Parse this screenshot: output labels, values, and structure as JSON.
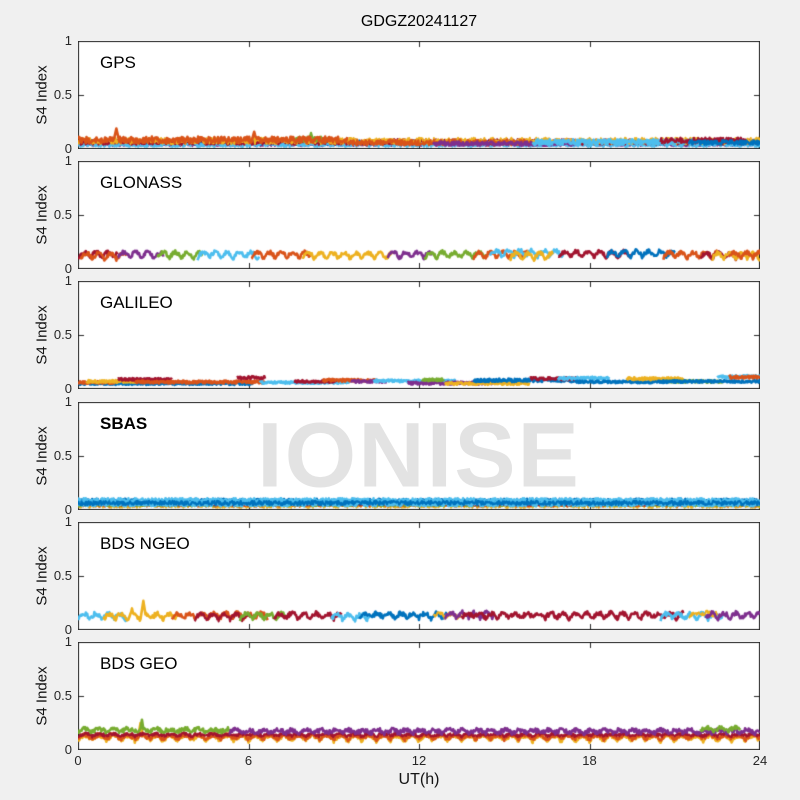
{
  "title": "GDGZ20241127",
  "watermark": "IONISE",
  "axis": {
    "ylabel": "S4 Index",
    "xlabel": "UT(h)",
    "yticks": [
      "1",
      "0.5",
      "0"
    ],
    "xticks": [
      "0",
      "6",
      "12",
      "18",
      "24"
    ]
  },
  "chart_data": {
    "type": "line",
    "title": "GDGZ20241127",
    "xlabel": "UT(h)",
    "ylabel": "S4 Index",
    "xlim": [
      0,
      24
    ],
    "ylim": [
      0,
      1
    ],
    "xticks": [
      0,
      6,
      12,
      18,
      24
    ],
    "yticks": [
      0,
      0.5,
      1
    ],
    "watermark": "IONISE",
    "description": "Amplitude scintillation index S4 versus universal time for six GNSS constellations on 2024-11-27 at station GDGZ; each colored trace is one satellite, quiet-day values mostly between 0.03 and 0.2",
    "palette": {
      "blue": "#0072BD",
      "orange": "#D95319",
      "yellow": "#EDB120",
      "purple": "#7E2F8E",
      "green": "#77AC30",
      "lightblue": "#4DBEEE",
      "darkred": "#A2142F"
    },
    "panels": [
      {
        "label": "GPS",
        "label_weight": "normal",
        "series": [
          {
            "c": "purple",
            "t0": 0,
            "t1": 24,
            "b": 0.045,
            "n": 0.018,
            "w": 2.2
          },
          {
            "c": "blue",
            "t0": 0,
            "t1": 24,
            "b": 0.06,
            "n": 0.022,
            "w": 2.4
          },
          {
            "c": "lightblue",
            "t0": 0,
            "t1": 24,
            "b": 0.04,
            "n": 0.018,
            "w": 2.4
          },
          {
            "c": "darkred",
            "t0": 0,
            "t1": 24,
            "b": 0.065,
            "n": 0.025,
            "w": 2.4
          },
          {
            "c": "yellow",
            "t0": 0,
            "t1": 24,
            "b": 0.075,
            "n": 0.03,
            "w": 2.0
          },
          {
            "c": "green",
            "t0": 7.6,
            "t1": 8.8,
            "b": 0.09,
            "n": 0.025,
            "w": 2.2,
            "spikes": [
              {
                "t": 8.2,
                "v": 0.15
              }
            ]
          },
          {
            "c": "orange",
            "t0": 0,
            "t1": 9.5,
            "b": 0.085,
            "n": 0.03,
            "w": 2.6,
            "spikes": [
              {
                "t": 1.35,
                "v": 0.19
              },
              {
                "t": 6.2,
                "v": 0.16
              }
            ]
          },
          {
            "c": "orange",
            "t0": 9.5,
            "t1": 16,
            "b": 0.06,
            "n": 0.028,
            "w": 2.2
          },
          {
            "c": "purple",
            "t0": 12.5,
            "t1": 17.5,
            "b": 0.05,
            "n": 0.02,
            "w": 2.6
          },
          {
            "c": "lightblue",
            "t0": 16,
            "t1": 22.5,
            "b": 0.065,
            "n": 0.025,
            "w": 2.8
          },
          {
            "c": "darkred",
            "t0": 20.5,
            "t1": 23.5,
            "b": 0.08,
            "n": 0.025,
            "w": 2.4
          },
          {
            "c": "blue",
            "t0": 21.5,
            "t1": 24,
            "b": 0.06,
            "n": 0.02,
            "w": 2.6
          }
        ]
      },
      {
        "label": "GLONASS",
        "label_weight": "normal",
        "series": [
          {
            "c": "darkred",
            "t0": 0,
            "t1": 1.4,
            "b": 0.1,
            "s": 0.055,
            "p": 0.42,
            "n": 0.018
          },
          {
            "c": "orange",
            "t0": 0.1,
            "t1": 1.7,
            "b": 0.09,
            "s": 0.055,
            "p": 0.42,
            "n": 0.018
          },
          {
            "c": "purple",
            "t0": 1.4,
            "t1": 3.0,
            "b": 0.1,
            "s": 0.055,
            "p": 0.42,
            "n": 0.018
          },
          {
            "c": "green",
            "t0": 2.8,
            "t1": 4.4,
            "b": 0.1,
            "s": 0.055,
            "p": 0.42,
            "n": 0.018
          },
          {
            "c": "lightblue",
            "t0": 4.2,
            "t1": 6.4,
            "b": 0.1,
            "s": 0.055,
            "p": 0.42,
            "n": 0.018
          },
          {
            "c": "orange",
            "t0": 6.1,
            "t1": 8.2,
            "b": 0.1,
            "s": 0.055,
            "p": 0.42,
            "n": 0.018
          },
          {
            "c": "yellow",
            "t0": 7.9,
            "t1": 11.1,
            "b": 0.095,
            "s": 0.055,
            "p": 0.42,
            "n": 0.018
          },
          {
            "c": "purple",
            "t0": 10.9,
            "t1": 12.5,
            "b": 0.1,
            "s": 0.055,
            "p": 0.42,
            "n": 0.018
          },
          {
            "c": "green",
            "t0": 12.2,
            "t1": 14.4,
            "b": 0.1,
            "s": 0.055,
            "p": 0.42,
            "n": 0.018
          },
          {
            "c": "orange",
            "t0": 13.9,
            "t1": 15.9,
            "b": 0.1,
            "s": 0.055,
            "p": 0.42,
            "n": 0.018
          },
          {
            "c": "lightblue",
            "t0": 14.5,
            "t1": 17.1,
            "b": 0.115,
            "s": 0.055,
            "p": 0.42,
            "n": 0.018
          },
          {
            "c": "yellow",
            "t0": 15.2,
            "t1": 16.7,
            "b": 0.09,
            "s": 0.055,
            "p": 0.42,
            "n": 0.018
          },
          {
            "c": "darkred",
            "t0": 16.9,
            "t1": 19.5,
            "b": 0.105,
            "s": 0.055,
            "p": 0.42,
            "n": 0.018
          },
          {
            "c": "blue",
            "t0": 18.6,
            "t1": 21.0,
            "b": 0.11,
            "s": 0.055,
            "p": 0.42,
            "n": 0.018
          },
          {
            "c": "orange",
            "t0": 20.6,
            "t1": 22.5,
            "b": 0.1,
            "s": 0.055,
            "p": 0.42,
            "n": 0.018
          },
          {
            "c": "darkred",
            "t0": 21.9,
            "t1": 23.3,
            "b": 0.095,
            "s": 0.055,
            "p": 0.42,
            "n": 0.018
          },
          {
            "c": "yellow",
            "t0": 22.3,
            "t1": 24,
            "b": 0.09,
            "s": 0.055,
            "p": 0.42,
            "n": 0.018
          },
          {
            "c": "orange",
            "t0": 22.9,
            "t1": 24,
            "b": 0.1,
            "s": 0.055,
            "p": 0.42,
            "n": 0.018
          }
        ]
      },
      {
        "label": "GALILEO",
        "label_weight": "normal",
        "series": [
          {
            "c": "blue",
            "t0": 0,
            "t1": 6.2,
            "b": 0.05,
            "n": 0.01,
            "w": 3
          },
          {
            "c": "orange",
            "t0": 0,
            "t1": 1.3,
            "b": 0.06,
            "n": 0.01,
            "w": 3
          },
          {
            "c": "yellow",
            "t0": 0.3,
            "t1": 2.1,
            "b": 0.07,
            "n": 0.01,
            "w": 3
          },
          {
            "c": "darkred",
            "t0": 1.4,
            "t1": 3.3,
            "b": 0.09,
            "n": 0.01,
            "w": 3
          },
          {
            "c": "orange",
            "t0": 2.0,
            "t1": 6.6,
            "b": 0.065,
            "n": 0.012,
            "w": 3
          },
          {
            "c": "darkred",
            "t0": 5.6,
            "t1": 6.6,
            "b": 0.105,
            "n": 0.012,
            "w": 3
          },
          {
            "c": "lightblue",
            "t0": 6.4,
            "t1": 9.6,
            "b": 0.06,
            "n": 0.01,
            "w": 3
          },
          {
            "c": "darkred",
            "t0": 7.6,
            "t1": 9.1,
            "b": 0.07,
            "n": 0.01,
            "w": 3
          },
          {
            "c": "orange",
            "t0": 8.6,
            "t1": 10.6,
            "b": 0.08,
            "n": 0.012,
            "w": 3
          },
          {
            "c": "purple",
            "t0": 9.6,
            "t1": 10.9,
            "b": 0.07,
            "n": 0.01,
            "w": 3
          },
          {
            "c": "lightblue",
            "t0": 10.4,
            "t1": 13.3,
            "b": 0.075,
            "n": 0.01,
            "w": 3
          },
          {
            "c": "purple",
            "t0": 11.6,
            "t1": 14.7,
            "b": 0.055,
            "n": 0.012,
            "w": 3
          },
          {
            "c": "green",
            "t0": 12.1,
            "t1": 12.9,
            "b": 0.085,
            "n": 0.01,
            "w": 3
          },
          {
            "c": "yellow",
            "t0": 12.9,
            "t1": 15.9,
            "b": 0.05,
            "n": 0.01,
            "w": 3
          },
          {
            "c": "blue",
            "t0": 13.9,
            "t1": 17.7,
            "b": 0.08,
            "n": 0.014,
            "w": 3
          },
          {
            "c": "darkred",
            "t0": 15.9,
            "t1": 17.7,
            "b": 0.095,
            "n": 0.012,
            "w": 3
          },
          {
            "c": "lightblue",
            "t0": 16.9,
            "t1": 18.7,
            "b": 0.1,
            "n": 0.012,
            "w": 3
          },
          {
            "c": "blue",
            "t0": 17.5,
            "t1": 20.8,
            "b": 0.065,
            "n": 0.01,
            "w": 3
          },
          {
            "c": "yellow",
            "t0": 19.3,
            "t1": 21.3,
            "b": 0.095,
            "n": 0.012,
            "w": 3
          },
          {
            "c": "green",
            "t0": 20.7,
            "t1": 22.7,
            "b": 0.07,
            "n": 0.01,
            "w": 3
          },
          {
            "c": "blue",
            "t0": 20.4,
            "t1": 24,
            "b": 0.07,
            "n": 0.01,
            "w": 3
          },
          {
            "c": "lightblue",
            "t0": 22.5,
            "t1": 24,
            "b": 0.115,
            "n": 0.012,
            "w": 3
          },
          {
            "c": "orange",
            "t0": 22.9,
            "t1": 24,
            "b": 0.11,
            "n": 0.012,
            "w": 3
          }
        ]
      },
      {
        "label": "SBAS",
        "label_weight": "bold",
        "series": [
          {
            "c": "yellow",
            "t0": 0,
            "t1": 24,
            "b": 0.04,
            "n": 0.02,
            "w": 2.0
          },
          {
            "c": "orange",
            "t0": 0,
            "t1": 24,
            "b": 0.05,
            "n": 0.02,
            "w": 2.0
          },
          {
            "c": "green",
            "t0": 0,
            "t1": 24,
            "b": 0.05,
            "n": 0.016,
            "w": 2.0
          },
          {
            "c": "purple",
            "t0": 0,
            "t1": 24,
            "b": 0.065,
            "n": 0.02,
            "w": 2.0
          },
          {
            "c": "darkred",
            "t0": 0,
            "t1": 24,
            "b": 0.06,
            "n": 0.02,
            "w": 2.0
          },
          {
            "c": "blue",
            "t0": 0,
            "t1": 24,
            "b": 0.08,
            "n": 0.024,
            "w": 2.6
          },
          {
            "c": "lightblue",
            "t0": 0,
            "t1": 24,
            "b": 0.055,
            "n": 0.02,
            "w": 2.6
          },
          {
            "c": "lightblue",
            "t0": 0,
            "t1": 24,
            "b": 0.09,
            "n": 0.02,
            "w": 2.4
          },
          {
            "c": "blue",
            "t0": 0,
            "t1": 24,
            "b": 0.065,
            "n": 0.02,
            "w": 2.2
          }
        ]
      },
      {
        "label": "BDS NGEO",
        "label_weight": "normal",
        "series": [
          {
            "c": "lightblue",
            "t0": 0,
            "t1": 1.7,
            "b": 0.1,
            "s": 0.05,
            "p": 0.42,
            "n": 0.02
          },
          {
            "c": "yellow",
            "t0": 0.9,
            "t1": 3.5,
            "b": 0.1,
            "s": 0.05,
            "p": 0.42,
            "n": 0.02,
            "spikes": [
              {
                "t": 2.3,
                "v": 0.27
              },
              {
                "t": 1.9,
                "v": 0.2
              }
            ]
          },
          {
            "c": "orange",
            "t0": 3.3,
            "t1": 6.7,
            "b": 0.105,
            "s": 0.05,
            "p": 0.42,
            "n": 0.02
          },
          {
            "c": "darkred",
            "t0": 4.1,
            "t1": 6.1,
            "b": 0.095,
            "s": 0.05,
            "p": 0.42,
            "n": 0.02,
            "w": 2.2
          },
          {
            "c": "green",
            "t0": 5.7,
            "t1": 7.3,
            "b": 0.1,
            "s": 0.05,
            "p": 0.42,
            "n": 0.02
          },
          {
            "c": "darkred",
            "t0": 6.9,
            "t1": 9.3,
            "b": 0.105,
            "s": 0.05,
            "p": 0.42,
            "n": 0.02
          },
          {
            "c": "lightblue",
            "t0": 8.9,
            "t1": 10.3,
            "b": 0.095,
            "s": 0.05,
            "p": 0.42,
            "n": 0.02
          },
          {
            "c": "blue",
            "t0": 9.9,
            "t1": 13.0,
            "b": 0.105,
            "s": 0.05,
            "p": 0.42,
            "n": 0.02
          },
          {
            "c": "yellow",
            "t0": 12.5,
            "t1": 13.5,
            "b": 0.12,
            "s": 0.03,
            "p": 0.42,
            "n": 0.02,
            "w": 2.0
          },
          {
            "c": "purple",
            "t0": 12.9,
            "t1": 14.7,
            "b": 0.11,
            "s": 0.05,
            "p": 0.42,
            "n": 0.02
          },
          {
            "c": "darkred",
            "t0": 13.5,
            "t1": 21.3,
            "b": 0.105,
            "s": 0.05,
            "p": 0.42,
            "n": 0.02
          },
          {
            "c": "lightblue",
            "t0": 20.5,
            "t1": 22.7,
            "b": 0.1,
            "s": 0.05,
            "p": 0.42,
            "n": 0.02
          },
          {
            "c": "yellow",
            "t0": 21.5,
            "t1": 22.5,
            "b": 0.13,
            "s": 0.03,
            "p": 0.42,
            "n": 0.02,
            "w": 2.0
          },
          {
            "c": "purple",
            "t0": 22.1,
            "t1": 24,
            "b": 0.105,
            "s": 0.05,
            "p": 0.42,
            "n": 0.02
          }
        ]
      },
      {
        "label": "BDS GEO",
        "label_weight": "normal",
        "series": [
          {
            "c": "yellow",
            "t0": 0,
            "t1": 24,
            "b": 0.085,
            "s": 0.05,
            "p": 0.5,
            "n": 0.02,
            "spikes": [
              {
                "t": 2.2,
                "v": 0.25
              }
            ]
          },
          {
            "c": "orange",
            "t0": 0,
            "t1": 24,
            "b": 0.1,
            "s": 0.04,
            "p": 0.5,
            "n": 0.018
          },
          {
            "c": "darkred",
            "t0": 0,
            "t1": 24,
            "b": 0.13,
            "s": 0.02,
            "p": 0.5,
            "n": 0.015,
            "w": 2.2
          },
          {
            "c": "green",
            "t0": 0,
            "t1": 5.4,
            "b": 0.165,
            "s": 0.03,
            "p": 0.5,
            "n": 0.02,
            "spikes": [
              {
                "t": 2.25,
                "v": 0.28
              }
            ]
          },
          {
            "c": "purple",
            "t0": 5.3,
            "t1": 24,
            "b": 0.155,
            "s": 0.03,
            "p": 0.5,
            "n": 0.02
          },
          {
            "c": "green",
            "t0": 21.9,
            "t1": 23.3,
            "b": 0.175,
            "s": 0.03,
            "p": 0.5,
            "n": 0.02,
            "w": 2.4
          }
        ]
      }
    ]
  }
}
